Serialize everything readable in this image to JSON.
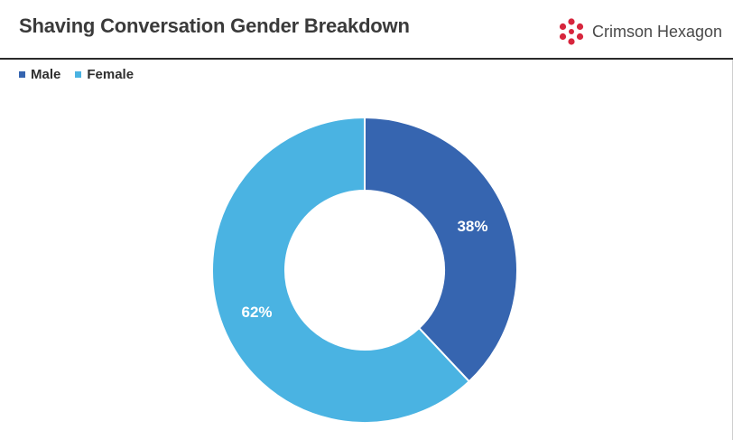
{
  "header": {
    "title": "Shaving Conversation Gender Breakdown",
    "brand_name": "Crimson Hexagon",
    "brand_color": "#d7263d"
  },
  "legend": {
    "items": [
      {
        "label": "Male",
        "color": "#3665b0"
      },
      {
        "label": "Female",
        "color": "#4ab3e2"
      }
    ],
    "placement": "top-left"
  },
  "chart_data": {
    "type": "pie",
    "subtype": "donut",
    "title": "Shaving Conversation Gender Breakdown",
    "categories": [
      "Male",
      "Female"
    ],
    "values": [
      38,
      62
    ],
    "data_labels": [
      "38%",
      "62%"
    ],
    "colors": [
      "#3665b0",
      "#4ab3e2"
    ],
    "legend": "top-left"
  }
}
